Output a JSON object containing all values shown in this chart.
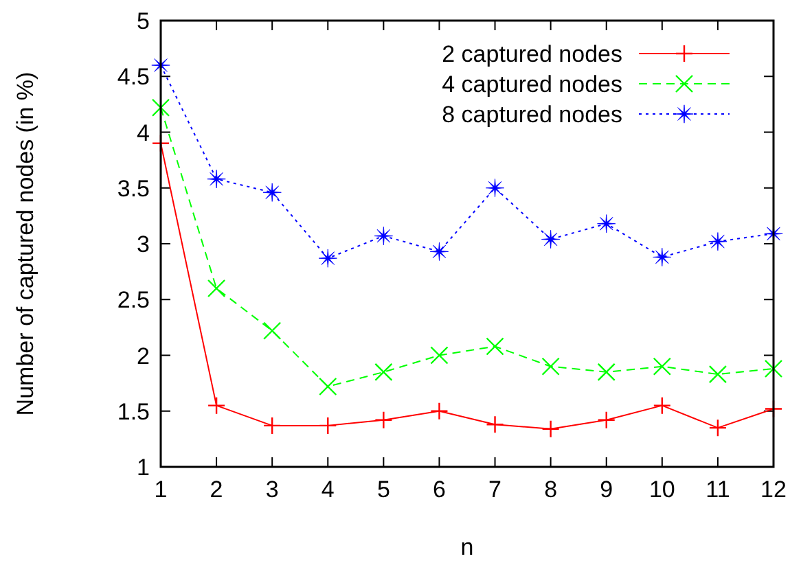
{
  "chart_data": {
    "type": "line",
    "xlabel": "n",
    "ylabel": "Number of captured nodes (in %)",
    "x": [
      1,
      2,
      3,
      4,
      5,
      6,
      7,
      8,
      9,
      10,
      11,
      12
    ],
    "xlim": [
      1,
      12
    ],
    "xticks": [
      1,
      2,
      3,
      4,
      5,
      6,
      7,
      8,
      9,
      10,
      11,
      12
    ],
    "ylim": [
      1,
      5
    ],
    "yticks": [
      1,
      1.5,
      2,
      2.5,
      3,
      3.5,
      4,
      4.5,
      5
    ],
    "grid": false,
    "legend": "top right",
    "series": [
      {
        "name": "2 captured nodes",
        "color": "#ff0000",
        "marker": "plus",
        "line_style": "solid",
        "values": [
          3.9,
          1.55,
          1.37,
          1.37,
          1.42,
          1.5,
          1.38,
          1.34,
          1.42,
          1.55,
          1.35,
          1.52
        ]
      },
      {
        "name": "4 captured nodes",
        "color": "#00ff00",
        "marker": "cross",
        "line_style": "dashed",
        "values": [
          4.22,
          2.6,
          2.22,
          1.72,
          1.85,
          2.0,
          2.08,
          1.9,
          1.85,
          1.9,
          1.83,
          1.88
        ]
      },
      {
        "name": "8 captured nodes",
        "color": "#0000ff",
        "marker": "star",
        "line_style": "dotted",
        "values": [
          4.6,
          3.58,
          3.46,
          2.87,
          3.07,
          2.93,
          3.5,
          3.04,
          3.18,
          2.88,
          3.02,
          3.09
        ]
      }
    ]
  }
}
